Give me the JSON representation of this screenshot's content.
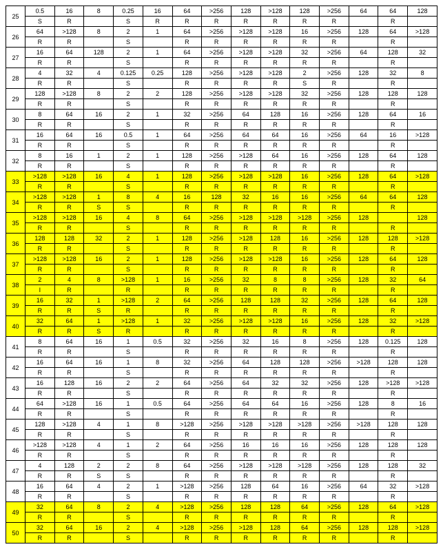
{
  "table": {
    "highlight_color": "#ffff00",
    "font_size": 9,
    "border_color": "#000000",
    "col_count": 15,
    "rows": [
      {
        "id": 25,
        "hl": false,
        "top": [
          "0.5",
          "16",
          "8",
          "0.25",
          "16",
          "64",
          ">256",
          "128",
          ">128",
          "128",
          ">256",
          "64",
          "64",
          "128"
        ],
        "bottom": [
          "S",
          "R",
          "",
          "S",
          "R",
          "R",
          "R",
          "R",
          "R",
          "R",
          "R",
          "",
          "R",
          ""
        ]
      },
      {
        "id": 26,
        "hl": false,
        "top": [
          "64",
          ">128",
          "8",
          "2",
          "1",
          "64",
          ">256",
          ">128",
          ">128",
          "16",
          ">256",
          "128",
          "64",
          ">128"
        ],
        "bottom": [
          "R",
          "R",
          "",
          "S",
          "",
          "R",
          "R",
          "R",
          "R",
          "R",
          "R",
          "",
          "R",
          ""
        ]
      },
      {
        "id": 27,
        "hl": false,
        "top": [
          "16",
          "64",
          "128",
          "2",
          "1",
          "64",
          ">256",
          ">128",
          ">128",
          "32",
          ">256",
          "64",
          "128",
          "32"
        ],
        "bottom": [
          "R",
          "R",
          "",
          "S",
          "",
          "R",
          "R",
          "R",
          "R",
          "R",
          "R",
          "",
          "R",
          ""
        ]
      },
      {
        "id": 28,
        "hl": false,
        "top": [
          "4",
          "32",
          "4",
          "0.125",
          "0.25",
          "128",
          ">256",
          ">128",
          ">128",
          "2",
          ">256",
          "128",
          "32",
          "8"
        ],
        "bottom": [
          "R",
          "R",
          "",
          "S",
          "",
          "R",
          "R",
          "R",
          "R",
          "S",
          "R",
          "",
          "R",
          ""
        ]
      },
      {
        "id": 29,
        "hl": false,
        "top": [
          "128",
          ">128",
          "8",
          "2",
          "2",
          "128",
          ">256",
          ">128",
          ">128",
          "32",
          ">256",
          "128",
          "128",
          "128"
        ],
        "bottom": [
          "R",
          "R",
          "",
          "S",
          "",
          "R",
          "R",
          "R",
          "R",
          "R",
          "R",
          "",
          "R",
          ""
        ]
      },
      {
        "id": 30,
        "hl": false,
        "top": [
          "8",
          "64",
          "16",
          "2",
          "1",
          "32",
          ">256",
          "64",
          "128",
          "16",
          ">256",
          "128",
          "64",
          "16"
        ],
        "bottom": [
          "R",
          "R",
          "",
          "S",
          "",
          "R",
          "R",
          "R",
          "R",
          "R",
          "R",
          "",
          "R",
          ""
        ]
      },
      {
        "id": 31,
        "hl": false,
        "top": [
          "16",
          "64",
          "16",
          "0.5",
          "1",
          "64",
          ">256",
          "64",
          "64",
          "16",
          ">256",
          "64",
          "16",
          ">128"
        ],
        "bottom": [
          "R",
          "R",
          "",
          "S",
          "",
          "R",
          "R",
          "R",
          "R",
          "R",
          "R",
          "",
          "R",
          ""
        ]
      },
      {
        "id": 32,
        "hl": false,
        "top": [
          "8",
          "16",
          "1",
          "2",
          "1",
          "128",
          ">256",
          ">128",
          "64",
          "16",
          ">256",
          "128",
          "64",
          "128"
        ],
        "bottom": [
          "R",
          "R",
          "",
          "S",
          "",
          "R",
          "R",
          "R",
          "R",
          "R",
          "R",
          "",
          "R",
          ""
        ]
      },
      {
        "id": 33,
        "hl": true,
        "top": [
          ">128",
          ">128",
          "16",
          "4",
          "1",
          "128",
          ">256",
          ">128",
          ">128",
          "16",
          ">256",
          "128",
          "64",
          ">128"
        ],
        "bottom": [
          "R",
          "R",
          "",
          "S",
          "",
          "R",
          "R",
          "R",
          "R",
          "R",
          "R",
          "",
          "R",
          ""
        ]
      },
      {
        "id": 34,
        "hl": true,
        "top": [
          ">128",
          ">128",
          "1",
          "8",
          "4",
          "16",
          "128",
          "32",
          "16",
          "16",
          ">256",
          "64",
          "64",
          "128"
        ],
        "bottom": [
          "R",
          "R",
          "S",
          "S",
          "",
          "R",
          "R",
          "R",
          "R",
          "R",
          "R",
          "",
          "R",
          ""
        ]
      },
      {
        "id": 35,
        "hl": true,
        "top": [
          ">128",
          ">128",
          "16",
          "4",
          "8",
          "64",
          ">256",
          ">128",
          ">128",
          ">128",
          ">256",
          "128",
          "",
          "128"
        ],
        "bottom": [
          "R",
          "R",
          "",
          "S",
          "",
          "R",
          "R",
          "R",
          "R",
          "R",
          "R",
          "",
          "R",
          ""
        ]
      },
      {
        "id": 36,
        "hl": true,
        "top": [
          "128",
          "128",
          "32",
          "2",
          "1",
          "128",
          ">256",
          ">128",
          "128",
          "16",
          ">256",
          "128",
          "128",
          ">128"
        ],
        "bottom": [
          "R",
          "R",
          "",
          "S",
          "",
          "R",
          "R",
          "R",
          "R",
          "R",
          "R",
          "",
          "R",
          ""
        ]
      },
      {
        "id": 37,
        "hl": true,
        "top": [
          ">128",
          ">128",
          "16",
          "2",
          "1",
          "128",
          ">256",
          ">128",
          ">128",
          "16",
          ">256",
          "128",
          "64",
          "128"
        ],
        "bottom": [
          "R",
          "R",
          "",
          "S",
          "",
          "R",
          "R",
          "R",
          "R",
          "R",
          "R",
          "",
          "R",
          ""
        ]
      },
      {
        "id": 38,
        "hl": true,
        "top": [
          "2",
          "4",
          "8",
          ">128",
          "1",
          "16",
          ">256",
          "32",
          "8",
          "8",
          ">256",
          "128",
          "32",
          "64"
        ],
        "bottom": [
          "I",
          "R",
          "",
          "R",
          "",
          "R",
          "R",
          "R",
          "R",
          "R",
          "R",
          "",
          "R",
          ""
        ]
      },
      {
        "id": 39,
        "hl": true,
        "top": [
          "16",
          "32",
          "1",
          ">128",
          "2",
          "64",
          ">256",
          "128",
          "128",
          "32",
          ">256",
          "128",
          "64",
          "128"
        ],
        "bottom": [
          "R",
          "R",
          "S",
          "R",
          "",
          "R",
          "R",
          "R",
          "R",
          "R",
          "R",
          "",
          "R",
          ""
        ]
      },
      {
        "id": 40,
        "hl": true,
        "top": [
          "32",
          "64",
          "1",
          ">128",
          "1",
          "32",
          ">256",
          ">128",
          ">128",
          "16",
          ">256",
          "128",
          "32",
          ">128"
        ],
        "bottom": [
          "R",
          "R",
          "S",
          "R",
          "",
          "R",
          "R",
          "R",
          "R",
          "R",
          "R",
          "",
          "R",
          ""
        ]
      },
      {
        "id": 41,
        "hl": false,
        "top": [
          "8",
          "64",
          "16",
          "1",
          "0.5",
          "32",
          ">256",
          "32",
          "16",
          "8",
          ">256",
          "128",
          "0.125",
          "128"
        ],
        "bottom": [
          "R",
          "R",
          "",
          "S",
          "",
          "R",
          "R",
          "R",
          "R",
          "R",
          "R",
          "",
          "R",
          ""
        ]
      },
      {
        "id": 42,
        "hl": false,
        "top": [
          "16",
          "64",
          "16",
          "1",
          "8",
          "32",
          ">256",
          "64",
          "128",
          "128",
          ">256",
          ">128",
          "128",
          "128"
        ],
        "bottom": [
          "R",
          "R",
          "",
          "S",
          "",
          "R",
          "R",
          "R",
          "R",
          "R",
          "R",
          "",
          "R",
          ""
        ]
      },
      {
        "id": 43,
        "hl": false,
        "top": [
          "16",
          "128",
          "16",
          "2",
          "2",
          "64",
          ">256",
          "64",
          "32",
          "32",
          ">256",
          "128",
          ">128",
          ">128"
        ],
        "bottom": [
          "R",
          "R",
          "",
          "S",
          "",
          "R",
          "R",
          "R",
          "R",
          "R",
          "R",
          "",
          "R",
          ""
        ]
      },
      {
        "id": 44,
        "hl": false,
        "top": [
          "64",
          ">128",
          "16",
          "1",
          "0.5",
          "64",
          ">256",
          "64",
          "64",
          "16",
          ">256",
          "128",
          "8",
          "16"
        ],
        "bottom": [
          "R",
          "R",
          "",
          "S",
          "",
          "R",
          "R",
          "R",
          "R",
          "R",
          "R",
          "",
          "R",
          ""
        ]
      },
      {
        "id": 45,
        "hl": false,
        "top": [
          "128",
          ">128",
          "4",
          "1",
          "8",
          ">128",
          ">256",
          ">128",
          ">128",
          ">128",
          ">256",
          ">128",
          "128",
          "128"
        ],
        "bottom": [
          "R",
          "R",
          "",
          "S",
          "",
          "R",
          "R",
          "R",
          "R",
          "R",
          "R",
          "",
          "R",
          ""
        ]
      },
      {
        "id": 46,
        "hl": false,
        "top": [
          ">128",
          ">128",
          "4",
          "1",
          "2",
          "64",
          ">256",
          "16",
          "16",
          "16",
          ">256",
          "128",
          "128",
          "128"
        ],
        "bottom": [
          "R",
          "R",
          "",
          "S",
          "",
          "R",
          "R",
          "R",
          "R",
          "R",
          "R",
          "",
          "R",
          ""
        ]
      },
      {
        "id": 47,
        "hl": false,
        "top": [
          "4",
          "128",
          "2",
          "2",
          "8",
          "64",
          ">256",
          ">128",
          ">128",
          ">128",
          ">256",
          "128",
          "128",
          "32"
        ],
        "bottom": [
          "R",
          "R",
          "S",
          "S",
          "",
          "R",
          "R",
          "R",
          "R",
          "R",
          "R",
          "",
          "R",
          ""
        ]
      },
      {
        "id": 48,
        "hl": false,
        "top": [
          "16",
          "64",
          "4",
          "2",
          "1",
          ">128",
          ">256",
          "128",
          "64",
          "16",
          ">256",
          "64",
          "32",
          ">128"
        ],
        "bottom": [
          "R",
          "R",
          "",
          "S",
          "",
          "R",
          "R",
          "R",
          "R",
          "R",
          "R",
          "",
          "R",
          ""
        ]
      },
      {
        "id": 49,
        "hl": true,
        "top": [
          "32",
          "64",
          "8",
          "2",
          "4",
          ">128",
          ">256",
          "128",
          "128",
          "64",
          ">256",
          "128",
          "64",
          ">128"
        ],
        "bottom": [
          "R",
          "R",
          "",
          "S",
          "",
          "R",
          "R",
          "R",
          "R",
          "R",
          "R",
          "",
          "R",
          ""
        ]
      },
      {
        "id": 50,
        "hl": true,
        "top": [
          "32",
          "64",
          "16",
          "2",
          "4",
          ">128",
          ">256",
          ">128",
          "128",
          "64",
          ">256",
          "128",
          "128",
          ">128"
        ],
        "bottom": [
          "R",
          "R",
          "",
          "S",
          "",
          "R",
          "R",
          "R",
          "R",
          "R",
          "R",
          "",
          "R",
          ""
        ]
      }
    ]
  }
}
